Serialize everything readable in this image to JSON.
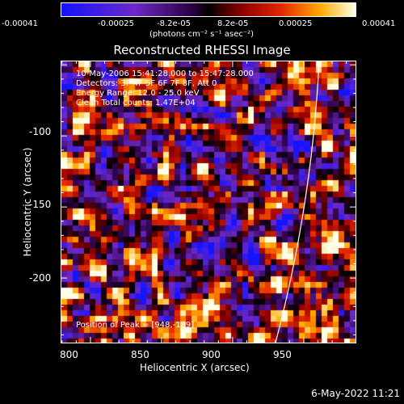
{
  "colorbar": {
    "tick_labels": [
      "-0.00041",
      "-0.00025",
      "-8.2e-05",
      "8.2e-05",
      "0.00025",
      "0.00041"
    ],
    "unit": "(photons cm⁻² s⁻¹ asec⁻²)",
    "range": [
      -0.00041,
      0.00041
    ]
  },
  "annotations": {
    "time": "10-May-2006 15:41:28.000 to 15:47:28.000",
    "detectors": "Detectors: 3F 4F 5F 6F 7F 8F, Att 0",
    "energy": "Energy Range: 12.0 - 25.0 keV",
    "method": "Clean     Total counts: 1.47E+04",
    "peak": "Position of Peak = [948,-189]"
  },
  "footer": "6-May-2022 11:21",
  "chart_data": {
    "type": "heatmap",
    "title": "Reconstructed RHESSI Image",
    "xlabel": "Heliocentric X (arcsec)",
    "ylabel": "Heliocentric Y (arcsec)",
    "xlim": [
      779,
      987
    ],
    "ylim": [
      -246,
      -47
    ],
    "x_ticks": [
      800,
      850,
      900,
      950
    ],
    "y_ticks": [
      -100,
      -150,
      -200
    ],
    "colormap": "rainbow-blue-to-black-to-yellow",
    "peak_position": [
      948,
      -189
    ],
    "limb_color": "#ffffff"
  }
}
